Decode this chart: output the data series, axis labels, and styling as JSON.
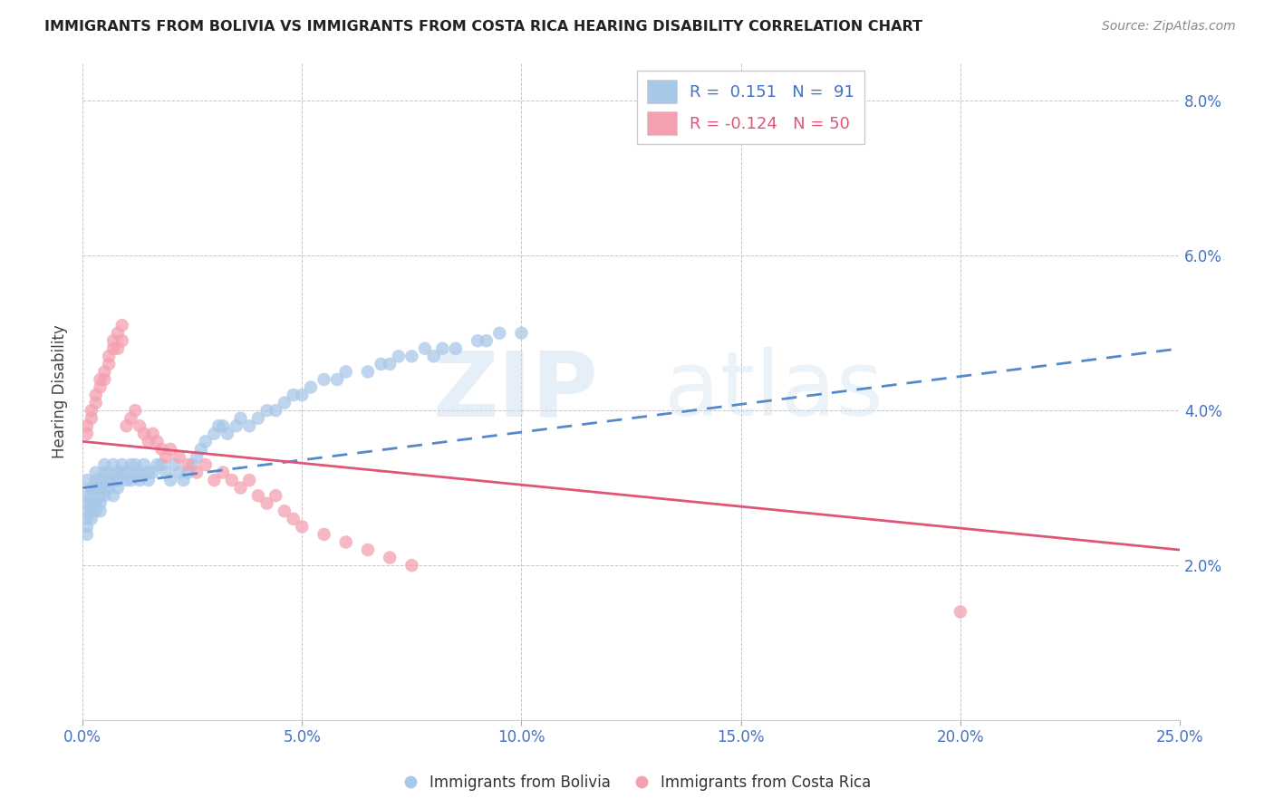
{
  "title": "IMMIGRANTS FROM BOLIVIA VS IMMIGRANTS FROM COSTA RICA HEARING DISABILITY CORRELATION CHART",
  "source": "Source: ZipAtlas.com",
  "ylabel": "Hearing Disability",
  "bolivia_color": "#a8c8e8",
  "costa_rica_color": "#f4a0b0",
  "bolivia_line_color": "#5588cc",
  "costa_rica_line_color": "#e05575",
  "bolivia_legend_color": "#a8c8e8",
  "costa_rica_legend_color": "#f4a0b0",
  "bolivia_label": "Immigrants from Bolivia",
  "costa_rica_label": "Immigrants from Costa Rica",
  "r_bolivia": "0.151",
  "n_bolivia": "91",
  "r_costa_rica": "-0.124",
  "n_costa_rica": "50",
  "bolivia_line": [
    0.0,
    0.03,
    0.25,
    0.048
  ],
  "costa_rica_line": [
    0.0,
    0.036,
    0.25,
    0.022
  ],
  "bolivia_scatter_x": [
    0.001,
    0.001,
    0.001,
    0.001,
    0.001,
    0.001,
    0.001,
    0.002,
    0.002,
    0.002,
    0.002,
    0.002,
    0.003,
    0.003,
    0.003,
    0.003,
    0.003,
    0.004,
    0.004,
    0.004,
    0.004,
    0.004,
    0.005,
    0.005,
    0.005,
    0.005,
    0.006,
    0.006,
    0.006,
    0.007,
    0.007,
    0.007,
    0.008,
    0.008,
    0.008,
    0.009,
    0.009,
    0.01,
    0.01,
    0.011,
    0.011,
    0.012,
    0.012,
    0.013,
    0.013,
    0.014,
    0.015,
    0.015,
    0.016,
    0.017,
    0.018,
    0.019,
    0.02,
    0.021,
    0.022,
    0.023,
    0.024,
    0.025,
    0.026,
    0.027,
    0.028,
    0.03,
    0.031,
    0.032,
    0.033,
    0.035,
    0.036,
    0.038,
    0.04,
    0.042,
    0.044,
    0.046,
    0.048,
    0.05,
    0.052,
    0.055,
    0.058,
    0.06,
    0.065,
    0.068,
    0.07,
    0.072,
    0.075,
    0.078,
    0.08,
    0.082,
    0.085,
    0.09,
    0.092,
    0.095,
    0.1
  ],
  "bolivia_scatter_y": [
    0.028,
    0.027,
    0.029,
    0.026,
    0.031,
    0.025,
    0.024,
    0.03,
    0.028,
    0.027,
    0.026,
    0.029,
    0.031,
    0.03,
    0.028,
    0.027,
    0.032,
    0.029,
    0.03,
    0.031,
    0.028,
    0.027,
    0.033,
    0.032,
    0.03,
    0.029,
    0.031,
    0.032,
    0.03,
    0.029,
    0.033,
    0.031,
    0.032,
    0.03,
    0.031,
    0.032,
    0.033,
    0.031,
    0.032,
    0.033,
    0.031,
    0.032,
    0.033,
    0.031,
    0.032,
    0.033,
    0.032,
    0.031,
    0.032,
    0.033,
    0.033,
    0.032,
    0.031,
    0.033,
    0.032,
    0.031,
    0.032,
    0.033,
    0.034,
    0.035,
    0.036,
    0.037,
    0.038,
    0.038,
    0.037,
    0.038,
    0.039,
    0.038,
    0.039,
    0.04,
    0.04,
    0.041,
    0.042,
    0.042,
    0.043,
    0.044,
    0.044,
    0.045,
    0.045,
    0.046,
    0.046,
    0.047,
    0.047,
    0.048,
    0.047,
    0.048,
    0.048,
    0.049,
    0.049,
    0.05,
    0.05
  ],
  "costa_rica_scatter_x": [
    0.001,
    0.001,
    0.002,
    0.002,
    0.003,
    0.003,
    0.004,
    0.004,
    0.005,
    0.005,
    0.006,
    0.006,
    0.007,
    0.007,
    0.008,
    0.008,
    0.009,
    0.009,
    0.01,
    0.011,
    0.012,
    0.013,
    0.014,
    0.015,
    0.016,
    0.017,
    0.018,
    0.019,
    0.02,
    0.022,
    0.024,
    0.026,
    0.028,
    0.03,
    0.032,
    0.034,
    0.036,
    0.038,
    0.04,
    0.042,
    0.044,
    0.046,
    0.048,
    0.05,
    0.055,
    0.06,
    0.065,
    0.07,
    0.075,
    0.2
  ],
  "costa_rica_scatter_y": [
    0.038,
    0.037,
    0.04,
    0.039,
    0.041,
    0.042,
    0.043,
    0.044,
    0.045,
    0.044,
    0.046,
    0.047,
    0.048,
    0.049,
    0.048,
    0.05,
    0.049,
    0.051,
    0.038,
    0.039,
    0.04,
    0.038,
    0.037,
    0.036,
    0.037,
    0.036,
    0.035,
    0.034,
    0.035,
    0.034,
    0.033,
    0.032,
    0.033,
    0.031,
    0.032,
    0.031,
    0.03,
    0.031,
    0.029,
    0.028,
    0.029,
    0.027,
    0.026,
    0.025,
    0.024,
    0.023,
    0.022,
    0.021,
    0.02,
    0.014
  ],
  "xlim": [
    0.0,
    0.25
  ],
  "ylim": [
    0.0,
    0.085
  ],
  "xtick_positions": [
    0.0,
    0.05,
    0.1,
    0.15,
    0.2,
    0.25
  ],
  "ytick_positions": [
    0.02,
    0.04,
    0.06,
    0.08
  ],
  "figsize": [
    14.06,
    8.92
  ],
  "dpi": 100
}
